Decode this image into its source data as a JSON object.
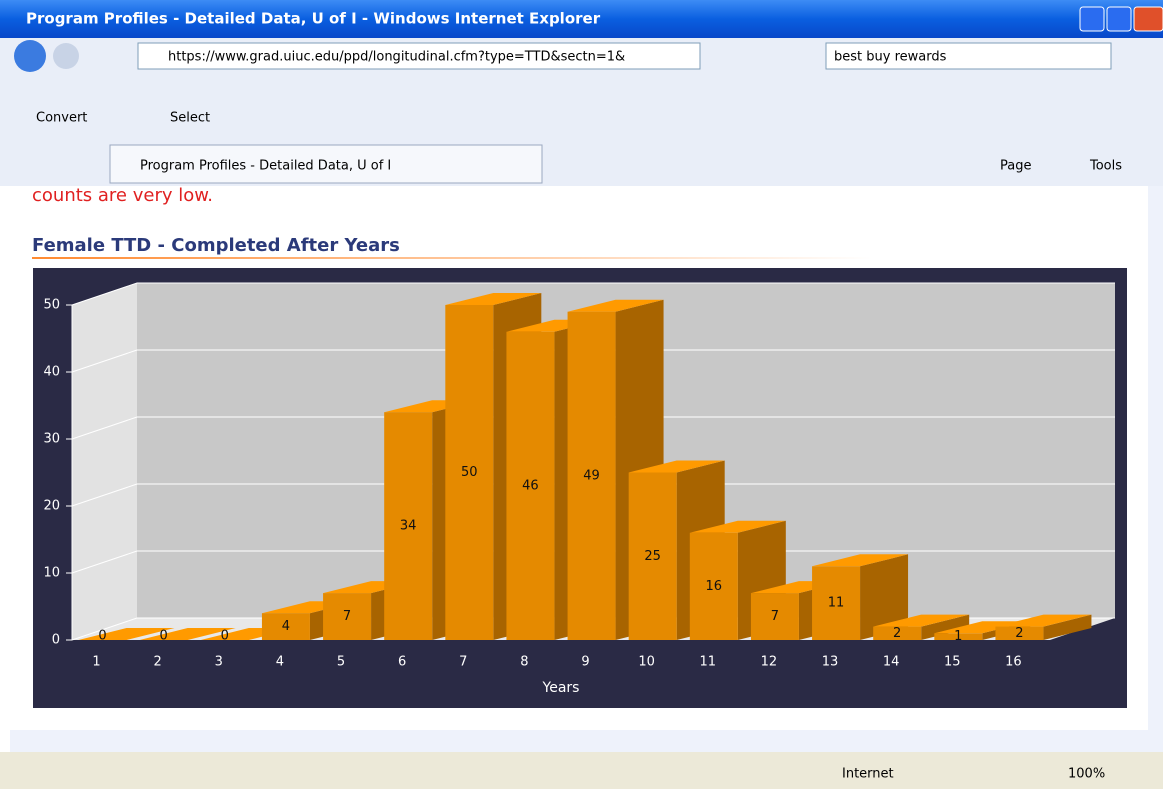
{
  "window": {
    "title": "Program Profiles - Detailed Data, U of I - Windows Internet Explorer"
  },
  "address": "https://www.grad.uiuc.edu/ppd/longitudinal.cfm?type=TTD&sectn=1&",
  "search": "best buy rewards",
  "toolbar": [
    "Convert",
    "Select"
  ],
  "tab": "Program Profiles - Detailed Data, U of I",
  "commands": [
    "Page",
    "Tools"
  ],
  "page": {
    "partial_text": "counts are very low.",
    "heading": "Female TTD - Completed After Years"
  },
  "chart_data": {
    "type": "bar",
    "categories": [
      "1",
      "2",
      "3",
      "4",
      "5",
      "6",
      "7",
      "8",
      "9",
      "10",
      "11",
      "12",
      "13",
      "14",
      "15",
      "16"
    ],
    "values": [
      0,
      0,
      0,
      4,
      7,
      34,
      50,
      46,
      49,
      25,
      16,
      7,
      11,
      2,
      1,
      2
    ],
    "xlabel": "Years",
    "ylim": [
      0,
      50
    ],
    "yticks": [
      0,
      10,
      20,
      30,
      40,
      50
    ],
    "grid": true,
    "color": "#e58a00"
  },
  "status": {
    "zone": "Internet",
    "zoom": "100%"
  }
}
